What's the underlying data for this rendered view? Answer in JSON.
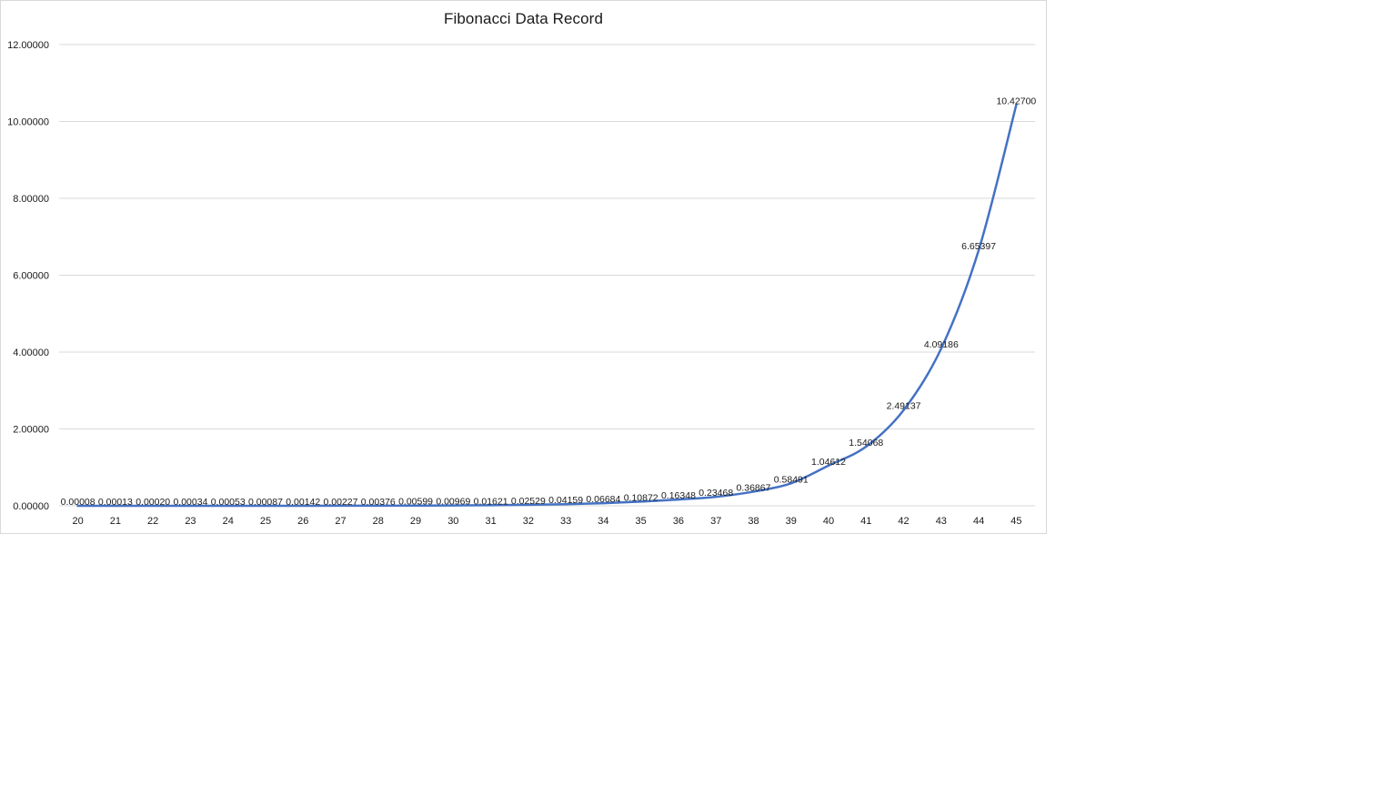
{
  "chart_data": {
    "type": "line",
    "title": "Fibonacci Data Record",
    "xlabel": "",
    "ylabel": "",
    "x": [
      "20",
      "21",
      "22",
      "23",
      "24",
      "25",
      "26",
      "27",
      "28",
      "29",
      "30",
      "31",
      "32",
      "33",
      "34",
      "35",
      "36",
      "37",
      "38",
      "39",
      "40",
      "41",
      "42",
      "43",
      "44",
      "45"
    ],
    "series": [
      {
        "name": "",
        "values": [
          8e-05,
          0.00013,
          0.0002,
          0.00034,
          0.00053,
          0.00087,
          0.00142,
          0.00227,
          0.00376,
          0.00599,
          0.00969,
          0.01621,
          0.02529,
          0.04159,
          0.06684,
          0.10872,
          0.16348,
          0.23468,
          0.36867,
          0.58491,
          1.04612,
          1.54068,
          2.49137,
          4.09186,
          6.65397,
          10.427
        ],
        "labels": [
          "0.00008",
          "0.00013",
          "0.00020",
          "0.00034",
          "0.00053",
          "0.00087",
          "0.00142",
          "0.00227",
          "0.00376",
          "0.00599",
          "0.00969",
          "0.01621",
          "0.02529",
          "0.04159",
          "0.06684",
          "0.10872",
          "0.16348",
          "0.23468",
          "0.36867",
          "0.58491",
          "1.04612",
          "1.54068",
          "2.49137",
          "4.09186",
          "6.65397",
          "10.42700"
        ],
        "color": "#4472c4"
      }
    ],
    "ylim": [
      0,
      12
    ],
    "yticks": [
      "0.00000",
      "2.00000",
      "4.00000",
      "6.00000",
      "8.00000",
      "10.00000",
      "12.00000"
    ],
    "ytick_values": [
      0,
      2,
      4,
      6,
      8,
      10,
      12
    ],
    "grid": true,
    "smooth": true,
    "gridline_color": "#d9d9d9",
    "axis_color": "#d9d9d9"
  }
}
